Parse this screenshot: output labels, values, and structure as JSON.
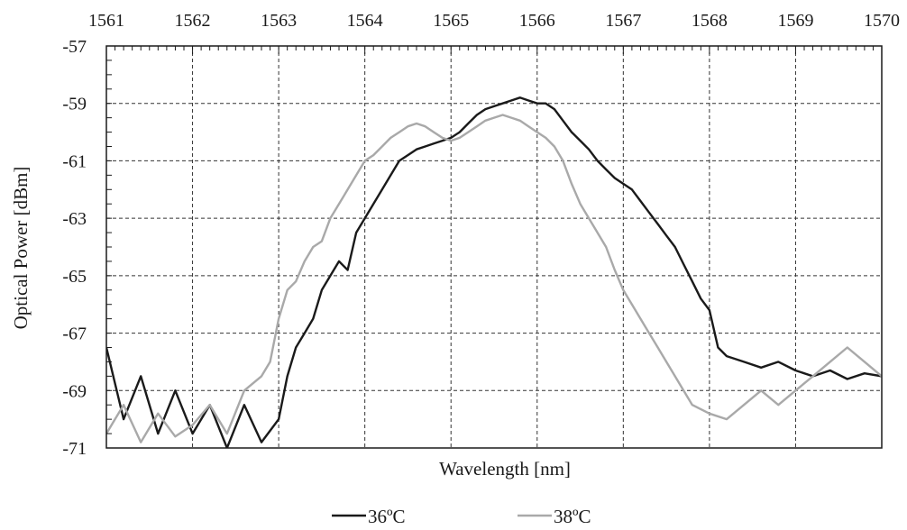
{
  "chart_data": {
    "type": "line",
    "xlabel": "Wavelength [nm]",
    "ylabel": "Optical Power  [dBm]",
    "xlim": [
      1561,
      1570
    ],
    "ylim": [
      -71,
      -57
    ],
    "x_ticks": [
      "1561",
      "1562",
      "1563",
      "1564",
      "1565",
      "1566",
      "1567",
      "1568",
      "1569",
      "1570"
    ],
    "y_ticks": [
      "-57",
      "-59",
      "-61",
      "-63",
      "-65",
      "-67",
      "-69",
      "-71"
    ],
    "x_axis_position": "top",
    "grid": true,
    "legend_position": "bottom-center",
    "series": [
      {
        "name": "36ºC",
        "color": "#1a1a1a",
        "x": [
          1561.0,
          1561.2,
          1561.4,
          1561.6,
          1561.8,
          1562.0,
          1562.2,
          1562.4,
          1562.6,
          1562.8,
          1563.0,
          1563.1,
          1563.2,
          1563.3,
          1563.4,
          1563.5,
          1563.6,
          1563.7,
          1563.8,
          1563.9,
          1564.0,
          1564.1,
          1564.2,
          1564.3,
          1564.4,
          1564.5,
          1564.6,
          1564.7,
          1564.8,
          1564.9,
          1565.0,
          1565.1,
          1565.2,
          1565.3,
          1565.4,
          1565.5,
          1565.6,
          1565.7,
          1565.8,
          1565.9,
          1566.0,
          1566.1,
          1566.2,
          1566.3,
          1566.4,
          1566.5,
          1566.6,
          1566.7,
          1566.8,
          1566.9,
          1567.0,
          1567.1,
          1567.2,
          1567.3,
          1567.4,
          1567.5,
          1567.6,
          1567.7,
          1567.8,
          1567.9,
          1568.0,
          1568.1,
          1568.2,
          1568.4,
          1568.6,
          1568.8,
          1569.0,
          1569.2,
          1569.4,
          1569.6,
          1569.8,
          1570.0
        ],
        "y": [
          -67.5,
          -70.0,
          -68.5,
          -70.5,
          -69.0,
          -70.5,
          -69.5,
          -71.0,
          -69.5,
          -70.8,
          -70.0,
          -68.5,
          -67.5,
          -67.0,
          -66.5,
          -65.5,
          -65.0,
          -64.5,
          -64.8,
          -63.5,
          -63.0,
          -62.5,
          -62.0,
          -61.5,
          -61.0,
          -60.8,
          -60.6,
          -60.5,
          -60.4,
          -60.3,
          -60.2,
          -60.0,
          -59.7,
          -59.4,
          -59.2,
          -59.1,
          -59.0,
          -58.9,
          -58.8,
          -58.9,
          -59.0,
          -59.0,
          -59.2,
          -59.6,
          -60.0,
          -60.3,
          -60.6,
          -61.0,
          -61.3,
          -61.6,
          -61.8,
          -62.0,
          -62.4,
          -62.8,
          -63.2,
          -63.6,
          -64.0,
          -64.6,
          -65.2,
          -65.8,
          -66.2,
          -67.5,
          -67.8,
          -68.0,
          -68.2,
          -68.0,
          -68.3,
          -68.5,
          -68.3,
          -68.6,
          -68.4,
          -68.5
        ]
      },
      {
        "name": "38ºC",
        "color": "#a9a9a9",
        "x": [
          1561.0,
          1561.2,
          1561.4,
          1561.6,
          1561.8,
          1562.0,
          1562.2,
          1562.4,
          1562.6,
          1562.8,
          1562.9,
          1563.0,
          1563.1,
          1563.2,
          1563.3,
          1563.4,
          1563.5,
          1563.6,
          1563.7,
          1563.8,
          1563.9,
          1564.0,
          1564.1,
          1564.2,
          1564.3,
          1564.4,
          1564.5,
          1564.6,
          1564.7,
          1564.8,
          1564.9,
          1565.0,
          1565.1,
          1565.2,
          1565.3,
          1565.4,
          1565.5,
          1565.6,
          1565.7,
          1565.8,
          1565.9,
          1566.0,
          1566.1,
          1566.2,
          1566.3,
          1566.4,
          1566.5,
          1566.6,
          1566.7,
          1566.8,
          1566.9,
          1567.0,
          1567.1,
          1567.2,
          1567.3,
          1567.4,
          1567.5,
          1567.6,
          1567.7,
          1567.8,
          1568.0,
          1568.2,
          1568.4,
          1568.6,
          1568.8,
          1569.0,
          1569.2,
          1569.4,
          1569.6,
          1569.8,
          1570.0
        ],
        "y": [
          -70.5,
          -69.5,
          -70.8,
          -69.8,
          -70.6,
          -70.2,
          -69.5,
          -70.5,
          -69.0,
          -68.5,
          -68.0,
          -66.5,
          -65.5,
          -65.2,
          -64.5,
          -64.0,
          -63.8,
          -63.0,
          -62.5,
          -62.0,
          -61.5,
          -61.0,
          -60.8,
          -60.5,
          -60.2,
          -60.0,
          -59.8,
          -59.7,
          -59.8,
          -60.0,
          -60.2,
          -60.3,
          -60.2,
          -60.0,
          -59.8,
          -59.6,
          -59.5,
          -59.4,
          -59.5,
          -59.6,
          -59.8,
          -60.0,
          -60.2,
          -60.5,
          -61.0,
          -61.8,
          -62.5,
          -63.0,
          -63.5,
          -64.0,
          -64.8,
          -65.5,
          -66.0,
          -66.5,
          -67.0,
          -67.5,
          -68.0,
          -68.5,
          -69.0,
          -69.5,
          -69.8,
          -70.0,
          -69.5,
          -69.0,
          -69.5,
          -69.0,
          -68.5,
          -68.0,
          -67.5,
          -68.0,
          -68.5
        ]
      }
    ]
  }
}
